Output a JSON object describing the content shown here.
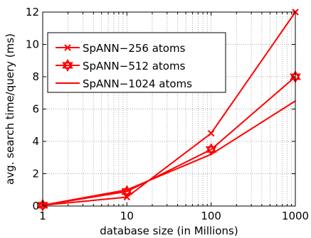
{
  "chart_data": {
    "type": "line",
    "xscale": "log",
    "x": [
      1,
      10,
      100,
      1000
    ],
    "xticks": [
      1,
      10,
      100,
      1000
    ],
    "xtick_labels": [
      "1",
      "10",
      "100",
      "1000"
    ],
    "xlim": [
      1,
      1000
    ],
    "yticks": [
      0,
      2,
      4,
      6,
      8,
      10,
      12
    ],
    "ytick_labels": [
      "0",
      "2",
      "4",
      "6",
      "8",
      "10",
      "12"
    ],
    "ylim": [
      0,
      12
    ],
    "xlabel": "database size (in Millions)",
    "ylabel": "avg. search time/query (ms)",
    "grid": true,
    "legend_position": "upper-left",
    "series": [
      {
        "name": "SpANN−256 atoms",
        "marker": "x",
        "color": "#ff0000",
        "values": [
          0.05,
          0.55,
          4.5,
          12.0
        ]
      },
      {
        "name": "SpANN−512 atoms",
        "marker": "hexagram",
        "color": "#ff0000",
        "values": [
          0.05,
          0.9,
          3.5,
          8.0
        ]
      },
      {
        "name": "SpANN−1024 atoms",
        "marker": "none",
        "color": "#ff0000",
        "values": [
          0.05,
          1.0,
          3.2,
          6.5
        ]
      }
    ]
  }
}
